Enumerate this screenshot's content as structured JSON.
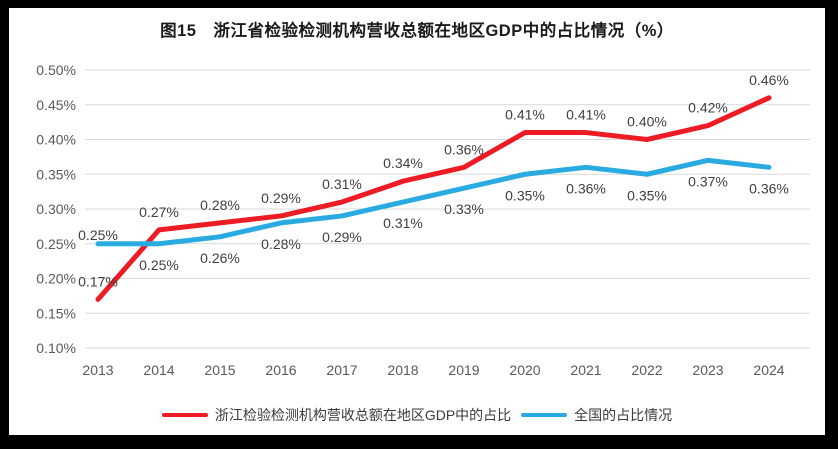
{
  "title": "图15　浙江省检验检测机构营收总额在地区GDP中的占比情况（%）",
  "frame_color": "#000000",
  "background_color": "#ffffff",
  "grid_color": "#d9d9d9",
  "axis_text_color": "#595959",
  "data_label_color": "#404040",
  "chart_data": {
    "type": "line",
    "title": "图15　浙江省检验检测机构营收总额在地区GDP中的占比情况（%）",
    "categories": [
      "2013",
      "2014",
      "2015",
      "2016",
      "2017",
      "2018",
      "2019",
      "2020",
      "2021",
      "2022",
      "2023",
      "2024"
    ],
    "series": [
      {
        "name": "浙江检验检测机构营收总额在地区GDP中的占比",
        "color": "#ED1C24",
        "values": [
          0.17,
          0.27,
          0.28,
          0.29,
          0.31,
          0.34,
          0.36,
          0.41,
          0.41,
          0.4,
          0.42,
          0.46
        ],
        "labels": [
          "0.17%",
          "0.27%",
          "0.28%",
          "0.29%",
          "0.31%",
          "0.34%",
          "0.36%",
          "0.41%",
          "0.41%",
          "0.40%",
          "0.42%",
          "0.46%"
        ],
        "label_side": [
          "above",
          "above",
          "above",
          "above",
          "above",
          "above",
          "above",
          "above",
          "above",
          "above",
          "above",
          "above"
        ]
      },
      {
        "name": "全国的占比情况",
        "color": "#29ABE2",
        "values": [
          0.25,
          0.25,
          0.26,
          0.28,
          0.29,
          0.31,
          0.33,
          0.35,
          0.36,
          0.35,
          0.37,
          0.36
        ],
        "labels": [
          "0.25%",
          "0.25%",
          "0.26%",
          "0.28%",
          "0.29%",
          "0.31%",
          "0.33%",
          "0.35%",
          "0.36%",
          "0.35%",
          "0.37%",
          "0.36%"
        ],
        "label_side": [
          "near-above",
          "below",
          "below",
          "below",
          "below",
          "below",
          "below",
          "below",
          "below",
          "below",
          "below",
          "below"
        ]
      }
    ],
    "ylim": [
      0.1,
      0.5
    ],
    "ytick_step": 0.05,
    "ytick_labels": [
      "0.50%",
      "0.45%",
      "0.40%",
      "0.35%",
      "0.30%",
      "0.25%",
      "0.20%",
      "0.15%",
      "0.10%"
    ],
    "xlabel": "",
    "ylabel": "",
    "grid": true,
    "legend_position": "bottom"
  }
}
